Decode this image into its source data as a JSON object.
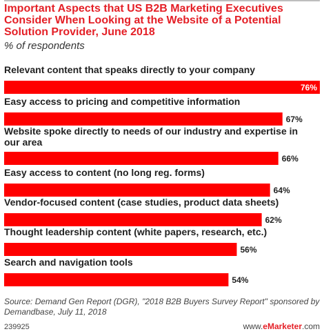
{
  "header": {
    "title": "Important Aspects that US B2B Marketing Executives Consider When Looking at the Website of a Potential Solution Provider, June 2018",
    "subtitle": "% of respondents"
  },
  "chart_data": {
    "type": "bar",
    "orientation": "horizontal",
    "bar_color": "#ff0000",
    "categories": [
      "Relevant content that speaks directly to your company",
      "Easy access to pricing and competitive information",
      "Website spoke directly to needs of our industry and expertise in our area",
      "Easy access to content (no long reg. forms)",
      "Vendor-focused content (case studies, product data sheets)",
      "Thought leadership content (white papers, research, etc.)",
      "Search and navigation tools"
    ],
    "values": [
      76,
      67,
      66,
      64,
      62,
      56,
      54
    ],
    "value_labels": [
      "76%",
      "67%",
      "66%",
      "64%",
      "62%",
      "56%",
      "54%"
    ],
    "xlim": [
      0,
      76
    ],
    "grid": false,
    "legend": "none"
  },
  "footer": {
    "source": "Source: Demand Gen Report (DGR), \"2018 B2B Buyers Survey Report\" sponsored by Demandbase, July 11, 2018",
    "chart_id": "239925",
    "brand_prefix": "www.",
    "brand_name": "eMarketer",
    "brand_suffix": ".com"
  }
}
